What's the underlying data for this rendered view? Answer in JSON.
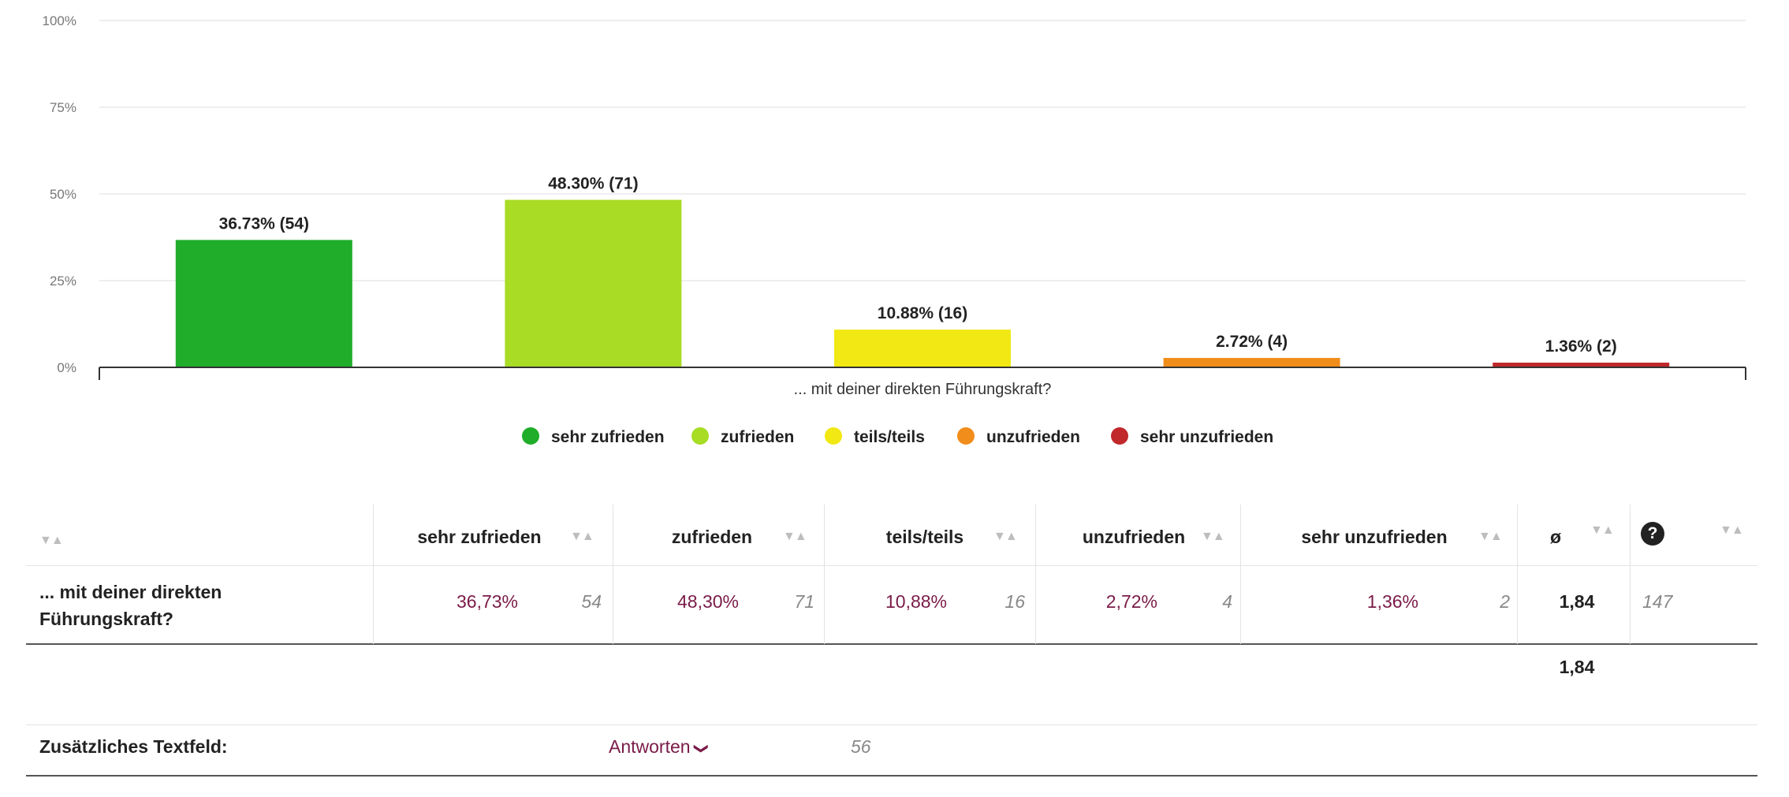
{
  "chart_data": {
    "type": "bar",
    "title": "",
    "xlabel": "... mit deiner direkten Führungskraft?",
    "ylabel": "",
    "ylim": [
      0,
      100
    ],
    "y_ticks": [
      "0%",
      "25%",
      "50%",
      "75%",
      "100%"
    ],
    "grid": true,
    "legend_position": "bottom",
    "categories": [
      "sehr zufrieden",
      "zufrieden",
      "teils/teils",
      "unzufrieden",
      "sehr unzufrieden"
    ],
    "values": [
      36.73,
      48.3,
      10.88,
      2.72,
      1.36
    ],
    "counts": [
      54,
      71,
      16,
      4,
      2
    ],
    "data_labels": [
      "36.73% (54)",
      "48.30% (71)",
      "10.88% (16)",
      "2.72% (4)",
      "1.36% (2)"
    ],
    "colors": [
      "#1fad2a",
      "#a8dc25",
      "#f2e813",
      "#f18d1b",
      "#c0282b"
    ]
  },
  "table": {
    "headers": [
      "sehr zufrieden",
      "zufrieden",
      "teils/teils",
      "unzufrieden",
      "sehr unzufrieden",
      "ø"
    ],
    "help_icon": "question-circle-icon",
    "sort_icon": "▼▲",
    "row": {
      "label": "... mit deiner direkten Führungskraft?",
      "percents": [
        "36,73%",
        "48,30%",
        "10,88%",
        "2,72%",
        "1,36%"
      ],
      "counts": [
        "54",
        "71",
        "16",
        "4",
        "2"
      ],
      "mean": "1,84",
      "total": "147"
    },
    "overall_mean": "1,84",
    "extra": {
      "label": "Zusätzliches Textfeld:",
      "answers_label": "Antworten",
      "answers_icon": "chevron-down-icon",
      "count": "56"
    }
  }
}
